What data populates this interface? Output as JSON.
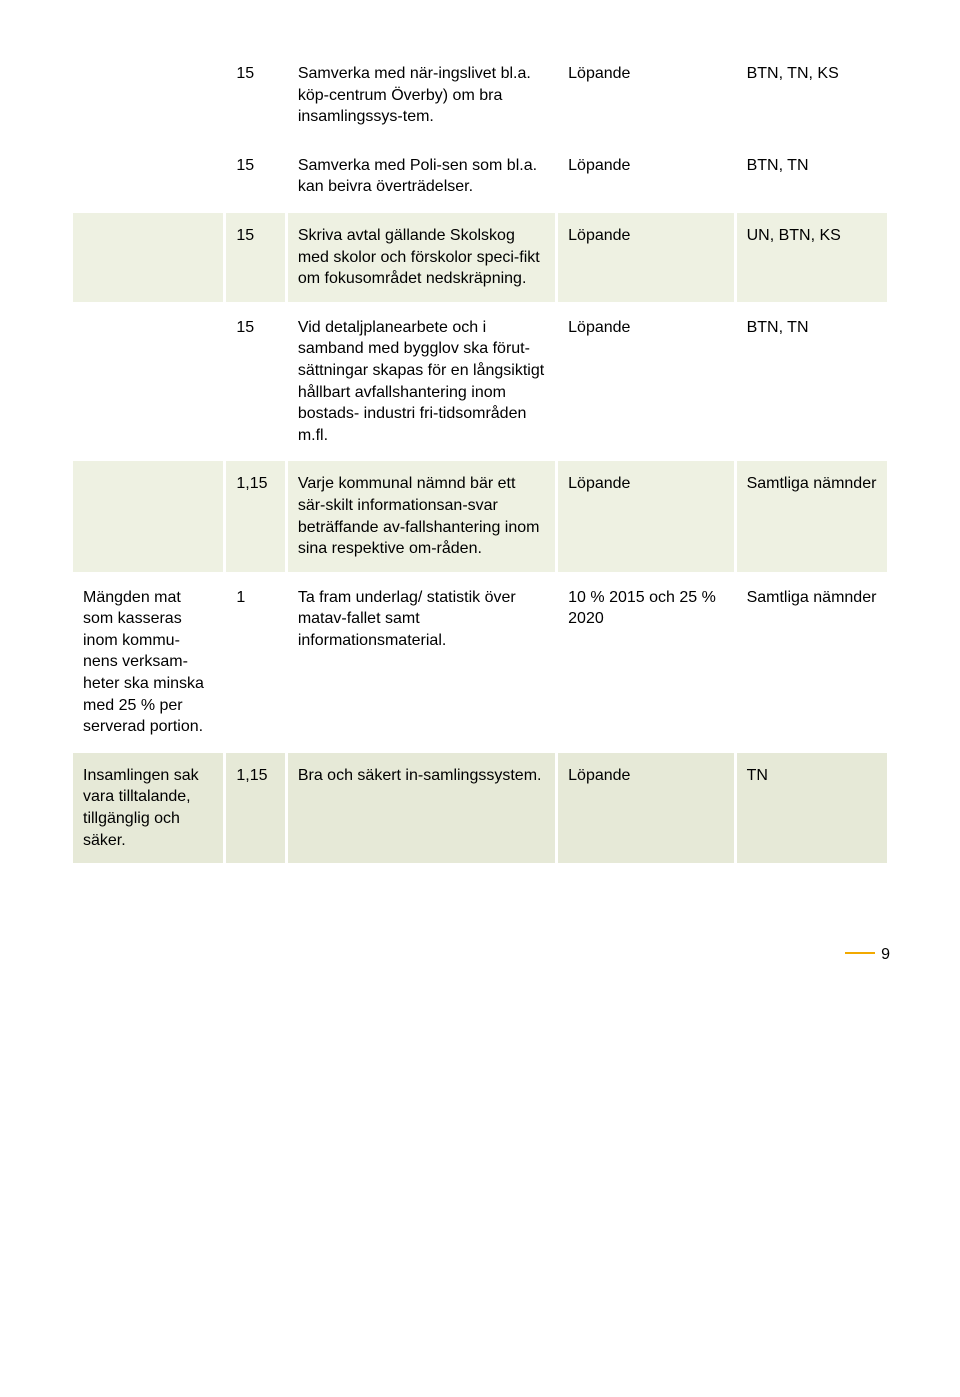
{
  "colors": {
    "band_light": "#eef1e2",
    "band_dark": "#e6e9d7",
    "white": "#ffffff",
    "underline": "#f2a900",
    "text": "#000000"
  },
  "layout": {
    "col_widths_pct": [
      18,
      7,
      32,
      21,
      18
    ],
    "font_family": "Arial",
    "font_size_pt": 12
  },
  "rows": [
    {
      "band": "white",
      "c0": "",
      "c1": "15",
      "c2": "Samverka med när-ingslivet bl.a. köp-centrum Överby) om bra insamlingssys-tem.",
      "c3": "Löpande",
      "c4": "BTN, TN, KS"
    },
    {
      "band": "white",
      "c0": "",
      "c1": "15",
      "c2": "Samverka med Poli-sen som bl.a. kan beivra överträdelser.",
      "c3": "Löpande",
      "c4": "BTN, TN"
    },
    {
      "band": "light",
      "c0": "",
      "c1": "15",
      "c2": "Skriva avtal gällande Skolskog med skolor och förskolor speci-fikt om fokusområdet nedskräpning.",
      "c3": "Löpande",
      "c4": "UN, BTN, KS"
    },
    {
      "band": "white",
      "c0": "",
      "c1": "15",
      "c2": "Vid detaljplanearbete och i samband med bygglov ska förut-sättningar skapas för en långsiktigt hållbart avfallshantering inom bostads- industri fri-tidsområden m.fl.",
      "c3": "Löpande",
      "c4": "BTN, TN"
    },
    {
      "band": "light",
      "c0": "",
      "c1": "1,15",
      "c2": "Varje kommunal nämnd bär ett sär-skilt informationsan-svar beträffande av-fallshantering inom sina respektive om-råden.",
      "c3": "Löpande",
      "c4": "Samtliga nämnder"
    },
    {
      "band": "white",
      "c0": "Mängden mat som kasseras inom kommu-nens verksam-heter ska minska med 25 % per serverad portion.",
      "c1": "1",
      "c2": "Ta fram underlag/ statistik över matav-fallet samt informationsmaterial.",
      "c3": "10 % 2015 och 25 % 2020",
      "c4": "Samtliga nämnder"
    },
    {
      "band": "dark",
      "c0": "Insamlingen sak vara tilltalande, tillgänglig och säker.",
      "c1": "1,15",
      "c2": "Bra och säkert in-samlingssystem.",
      "c3": "Löpande",
      "c4": "TN"
    }
  ],
  "page_number": "9"
}
